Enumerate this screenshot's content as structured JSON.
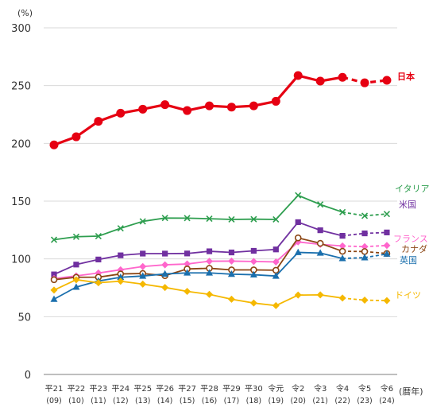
{
  "chart_data": {
    "type": "line",
    "y_unit": "(%)",
    "x_unit": "(暦年)",
    "ylim": [
      0,
      300
    ],
    "y_ticks": [
      0,
      50,
      100,
      150,
      200,
      250,
      300
    ],
    "grid": true,
    "categories": [
      {
        "era": "平21",
        "year": "(09)"
      },
      {
        "era": "平22",
        "year": "(10)"
      },
      {
        "era": "平23",
        "year": "(11)"
      },
      {
        "era": "平24",
        "year": "(12)"
      },
      {
        "era": "平25",
        "year": "(13)"
      },
      {
        "era": "平26",
        "year": "(14)"
      },
      {
        "era": "平27",
        "year": "(15)"
      },
      {
        "era": "平28",
        "year": "(16)"
      },
      {
        "era": "平29",
        "year": "(17)"
      },
      {
        "era": "平30",
        "year": "(18)"
      },
      {
        "era": "令元",
        "year": "(19)"
      },
      {
        "era": "令2",
        "year": "(20)"
      },
      {
        "era": "令3",
        "year": "(21)"
      },
      {
        "era": "令4",
        "year": "(22)"
      },
      {
        "era": "令5",
        "year": "(23)"
      },
      {
        "era": "令6",
        "year": "(24)"
      }
    ],
    "projection_from_index": 13,
    "series": [
      {
        "name": "日本",
        "color": "#e60012",
        "marker": "circle-large",
        "label_weight": "bold",
        "values": [
          198.7,
          205.7,
          219.1,
          226.1,
          229.6,
          233.5,
          228.4,
          232.5,
          231.4,
          232.5,
          236.4,
          258.7,
          253.9,
          257.2,
          252.4,
          254.6
        ]
      },
      {
        "name": "イタリア",
        "color": "#2e9e4f",
        "marker": "x",
        "values": [
          116.6,
          119.2,
          119.7,
          126.5,
          132.5,
          135.4,
          135.3,
          134.8,
          134.2,
          134.4,
          134.2,
          155.0,
          147.1,
          140.5,
          137.3,
          138.9
        ]
      },
      {
        "name": "米国",
        "color": "#7030a0",
        "marker": "square",
        "values": [
          86.6,
          95.1,
          99.5,
          103.1,
          104.6,
          104.6,
          104.7,
          106.6,
          105.6,
          107.0,
          108.2,
          131.8,
          124.8,
          120.0,
          122.1,
          122.9
        ]
      },
      {
        "name": "フランス",
        "color": "#ff66cc",
        "marker": "diamond",
        "values": [
          83.0,
          85.3,
          87.8,
          90.6,
          93.4,
          94.9,
          95.6,
          98.0,
          98.1,
          97.8,
          97.4,
          114.7,
          112.6,
          111.2,
          110.6,
          111.6
        ]
      },
      {
        "name": "カナダ",
        "color": "#8b4513",
        "marker": "circle-open",
        "values": [
          82.0,
          84.1,
          84.2,
          87.0,
          87.4,
          85.5,
          91.3,
          91.9,
          90.5,
          90.5,
          90.2,
          118.2,
          113.5,
          106.6,
          106.4,
          104.7
        ]
      },
      {
        "name": "英国",
        "color": "#1a6fad",
        "marker": "triangle",
        "values": [
          65.1,
          75.6,
          80.9,
          84.1,
          85.2,
          87.0,
          87.9,
          87.9,
          86.8,
          86.3,
          85.2,
          105.6,
          105.1,
          100.4,
          101.1,
          104.3
        ]
      },
      {
        "name": "ドイツ",
        "color": "#f5b800",
        "marker": "diamond",
        "values": [
          73.0,
          82.0,
          79.4,
          80.7,
          78.2,
          75.3,
          71.9,
          69.3,
          65.1,
          61.8,
          59.6,
          68.7,
          68.9,
          66.1,
          64.3,
          63.9
        ]
      }
    ]
  }
}
